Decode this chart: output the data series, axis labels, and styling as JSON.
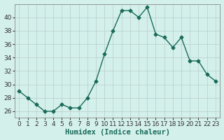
{
  "x": [
    0,
    1,
    2,
    3,
    4,
    5,
    6,
    7,
    8,
    9,
    10,
    11,
    12,
    13,
    14,
    15,
    16,
    17,
    18,
    19,
    20,
    21,
    22,
    23
  ],
  "y": [
    29,
    28,
    27,
    26,
    26,
    27,
    26.5,
    26.5,
    28,
    30.5,
    34.5,
    38,
    41,
    41,
    40,
    41.5,
    37.5,
    37,
    35.5,
    37,
    33.5,
    33.5,
    31.5,
    30.5
  ],
  "line_color": "#1a6b5a",
  "marker": "D",
  "marker_size": 2.5,
  "bg_color": "#d4f0eb",
  "grid_color": "#b8cdc9",
  "title": "",
  "xlabel": "Humidex (Indice chaleur)",
  "ylabel": "",
  "xlim": [
    -0.5,
    23.5
  ],
  "ylim": [
    25,
    42
  ],
  "yticks": [
    26,
    28,
    30,
    32,
    34,
    36,
    38,
    40
  ],
  "xticks": [
    0,
    1,
    2,
    3,
    4,
    5,
    6,
    7,
    8,
    9,
    10,
    11,
    12,
    13,
    14,
    15,
    16,
    17,
    18,
    19,
    20,
    21,
    22,
    23
  ],
  "xlabel_fontsize": 7.5,
  "tick_fontsize": 6.5,
  "line_width": 1.0
}
